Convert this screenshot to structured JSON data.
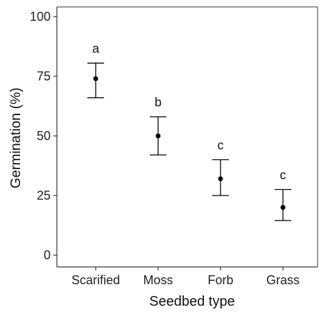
{
  "chart_data": {
    "type": "scatter",
    "subtype": "point-errorbar",
    "xlabel": "Seedbed type",
    "ylabel": "Germination (%)",
    "categories": [
      "Scarified",
      "Moss",
      "Forb",
      "Grass"
    ],
    "values": [
      74,
      50,
      32,
      20
    ],
    "error_low": [
      66,
      42,
      25,
      14.5
    ],
    "error_high": [
      80.5,
      58,
      40,
      27.5
    ],
    "significance_letters": [
      "a",
      "b",
      "c",
      "c"
    ],
    "ylim": [
      0,
      100
    ],
    "yticks": [
      "0",
      "25",
      "50",
      "75",
      "100"
    ],
    "grid": false,
    "legend": "none",
    "colors": {
      "marker": "#000000",
      "axis": "#333333"
    }
  }
}
